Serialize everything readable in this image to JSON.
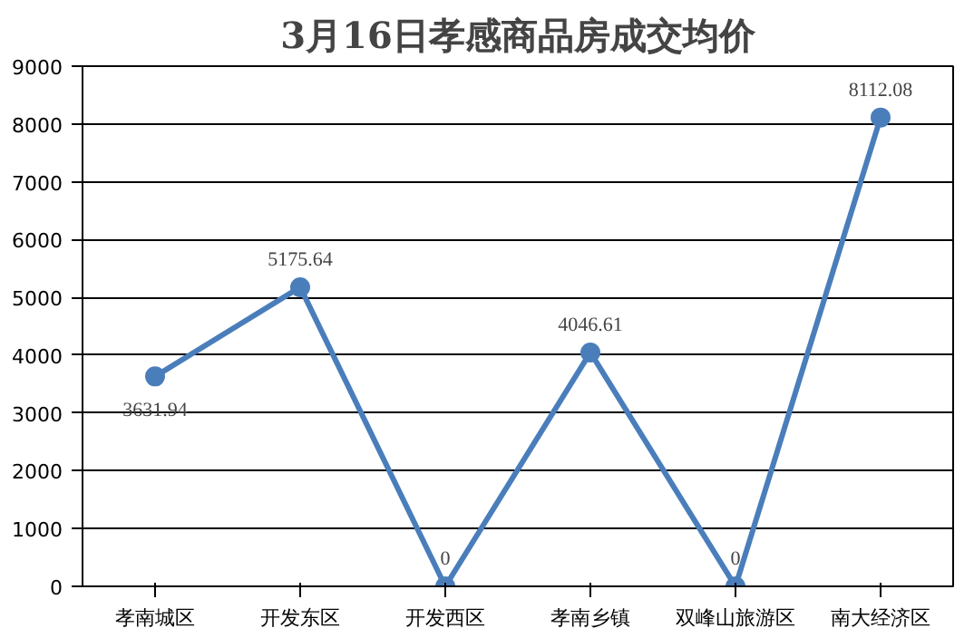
{
  "chart_data": {
    "type": "line",
    "title": "3月16日孝感商品房成交均价",
    "categories": [
      "孝南城区",
      "开发东区",
      "开发西区",
      "孝南乡镇",
      "双峰山旅游区",
      "南大经济区"
    ],
    "series": [
      {
        "color": "#4a7ebb",
        "values": [
          3631.94,
          5175.64,
          0,
          4046.61,
          0,
          8112.08
        ]
      }
    ],
    "value_labels": [
      "3631.94",
      "5175.64",
      "0",
      "4046.61",
      "0",
      "8112.08"
    ],
    "ylim": [
      0,
      9000
    ],
    "yticks": [
      0,
      1000,
      2000,
      3000,
      4000,
      5000,
      6000,
      7000,
      8000,
      9000
    ],
    "grid": "y",
    "marker": "circle",
    "line_style": "solid"
  }
}
